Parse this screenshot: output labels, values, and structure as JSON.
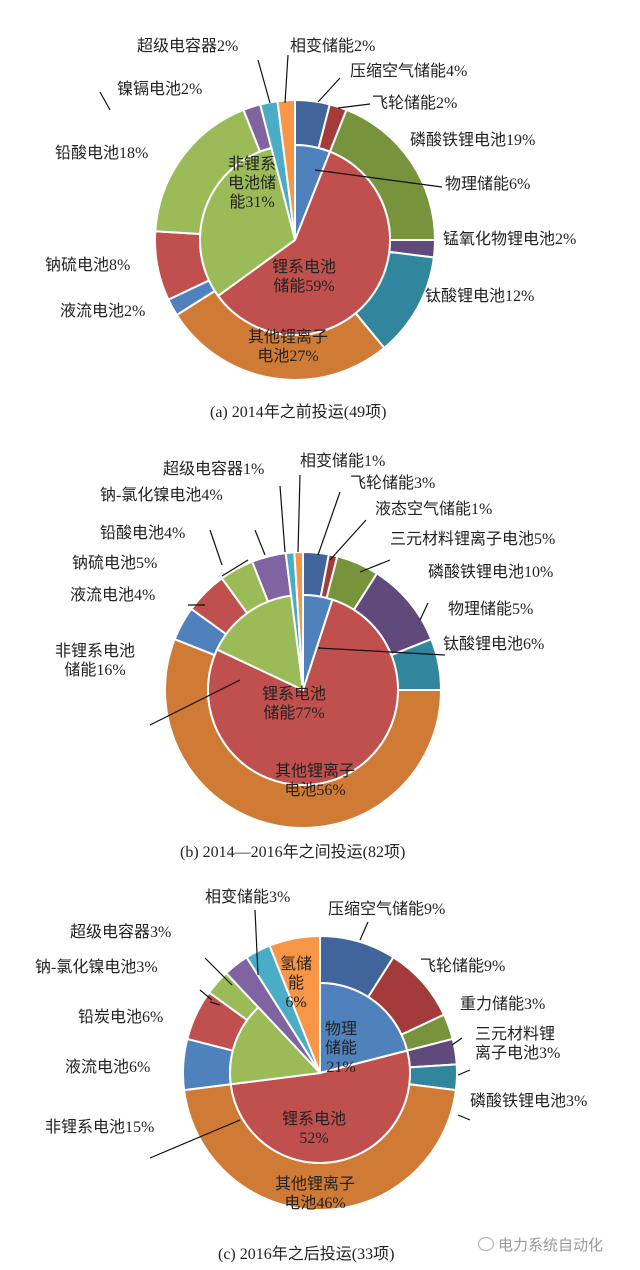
{
  "chart_data": [
    {
      "type": "pie",
      "title": "(a) 2014年之前投运(49项)",
      "inner": [
        {
          "label": "物理储能",
          "value": 6,
          "color": "#4f81bd"
        },
        {
          "label": "锂系电池\n储能",
          "value": 59,
          "color": "#c0504d"
        },
        {
          "label": "非锂系\n电池储\n能",
          "value": 31,
          "color": "#9bbb59"
        }
      ],
      "outer": [
        {
          "label": "压缩空气储能",
          "value": 4,
          "color": "#41649a"
        },
        {
          "label": "飞轮储能",
          "value": 2,
          "color": "#a33b3b"
        },
        {
          "label": "磷酸铁锂电池",
          "value": 19,
          "color": "#77933c"
        },
        {
          "label": "锰氧化物锂电池",
          "value": 2,
          "color": "#604a7b"
        },
        {
          "label": "钛酸锂电池",
          "value": 12,
          "color": "#31859c"
        },
        {
          "label": "其他锂离子\n电池",
          "value": 27,
          "color": "#d07b35"
        },
        {
          "label": "液流电池",
          "value": 2,
          "color": "#4f81bd"
        },
        {
          "label": "钠硫电池",
          "value": 8,
          "color": "#c0504d"
        },
        {
          "label": "铅酸电池",
          "value": 18,
          "color": "#9bbb59"
        },
        {
          "label": "镍镉电池",
          "value": 2,
          "color": "#8064a2"
        },
        {
          "label": "超级电容器",
          "value": 2,
          "color": "#4bacc6",
          "to_center": true
        },
        {
          "label": "相变储能",
          "value": 2,
          "color": "#f79646",
          "to_center": true
        }
      ]
    },
    {
      "type": "pie",
      "title": "(b) 2014—2016年之间投运(82项)",
      "inner": [
        {
          "label": "物理储能",
          "value": 5,
          "color": "#4f81bd"
        },
        {
          "label": "锂系电池\n储能",
          "value": 77,
          "color": "#c0504d"
        },
        {
          "label": "非锂系电池\n储能",
          "value": 16,
          "color": "#9bbb59"
        }
      ],
      "outer": [
        {
          "label": "飞轮储能",
          "value": 3,
          "color": "#41649a"
        },
        {
          "label": "液态空气储能",
          "value": 1,
          "color": "#a33b3b"
        },
        {
          "label": "三元材料锂离子电池",
          "value": 5,
          "color": "#77933c"
        },
        {
          "label": "磷酸铁锂电池",
          "value": 10,
          "color": "#604a7b"
        },
        {
          "label": "钛酸锂电池",
          "value": 6,
          "color": "#31859c"
        },
        {
          "label": "其他锂离子\n电池",
          "value": 56,
          "color": "#d07b35"
        },
        {
          "label": "液流电池",
          "value": 4,
          "color": "#4f81bd"
        },
        {
          "label": "钠硫电池",
          "value": 5,
          "color": "#c0504d"
        },
        {
          "label": "铅酸电池",
          "value": 4,
          "color": "#9bbb59"
        },
        {
          "label": "钠-氯化镍电池",
          "value": 4,
          "color": "#8064a2"
        },
        {
          "label": "超级电容器",
          "value": 1,
          "color": "#4bacc6",
          "to_center": true
        },
        {
          "label": "相变储能",
          "value": 1,
          "color": "#f79646",
          "to_center": true
        }
      ]
    },
    {
      "type": "pie",
      "title": "(c) 2016年之后投运(33项)",
      "inner": [
        {
          "label": "物理\n储能\n",
          "value": 21,
          "color": "#4f81bd"
        },
        {
          "label": "锂系电池\n",
          "value": 52,
          "color": "#c0504d"
        },
        {
          "label": "非锂系电池",
          "value": 15,
          "color": "#9bbb59"
        }
      ],
      "outer": [
        {
          "label": "压缩空气储能",
          "value": 9,
          "color": "#41649a"
        },
        {
          "label": "飞轮储能",
          "value": 9,
          "color": "#a33b3b"
        },
        {
          "label": "重力储能",
          "value": 3,
          "color": "#77933c"
        },
        {
          "label": "三元材料锂\n离子电池",
          "value": 3,
          "color": "#604a7b"
        },
        {
          "label": "磷酸铁锂电池",
          "value": 3,
          "color": "#31859c"
        },
        {
          "label": "其他锂离子\n电池",
          "value": 46,
          "color": "#d07b35"
        },
        {
          "label": "液流电池",
          "value": 6,
          "color": "#4f81bd"
        },
        {
          "label": "铅炭电池",
          "value": 6,
          "color": "#c0504d"
        },
        {
          "label": "钠-氯化镍电池",
          "value": 3,
          "color": "#9bbb59"
        },
        {
          "label": "超级电容器",
          "value": 3,
          "color": "#8064a2",
          "to_center": true
        },
        {
          "label": "相变储能",
          "value": 3,
          "color": "#4bacc6",
          "to_center": true
        },
        {
          "label": "氢储\n能\n",
          "value": 6,
          "color": "#f79646",
          "to_center": true
        }
      ]
    }
  ],
  "watermark": "电力系统自动化"
}
